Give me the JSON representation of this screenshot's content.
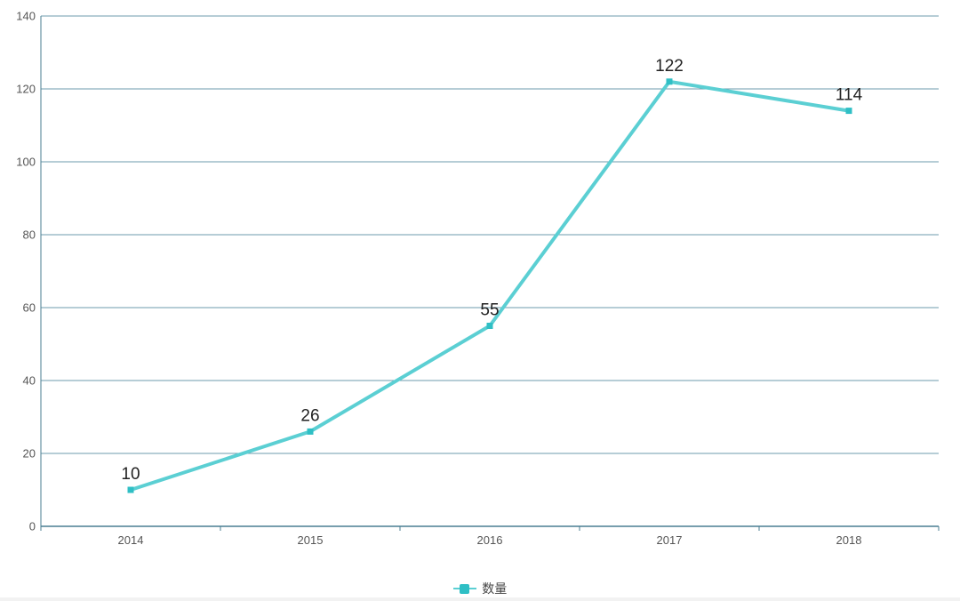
{
  "colors": {
    "series": "#5BCFD3",
    "marker": "#2FBFC5",
    "grid": "#6E9BAE",
    "axis": "#4A7E92"
  },
  "chart_data": {
    "type": "line",
    "categories": [
      "2014",
      "2015",
      "2016",
      "2017",
      "2018"
    ],
    "series": [
      {
        "name": "数量",
        "values": [
          10,
          26,
          55,
          122,
          114
        ]
      }
    ],
    "data_labels": [
      "10",
      "26",
      "55",
      "122",
      "114"
    ],
    "ylim": [
      0,
      140
    ],
    "y_ticks": [
      0,
      20,
      40,
      60,
      80,
      100,
      120,
      140
    ],
    "y_tick_labels": [
      "0",
      "20",
      "40",
      "60",
      "80",
      "100",
      "120",
      "140"
    ],
    "grid": true,
    "legend": {
      "position": "bottom-center",
      "entries": [
        "数量"
      ]
    },
    "title": "",
    "xlabel": "",
    "ylabel": ""
  }
}
